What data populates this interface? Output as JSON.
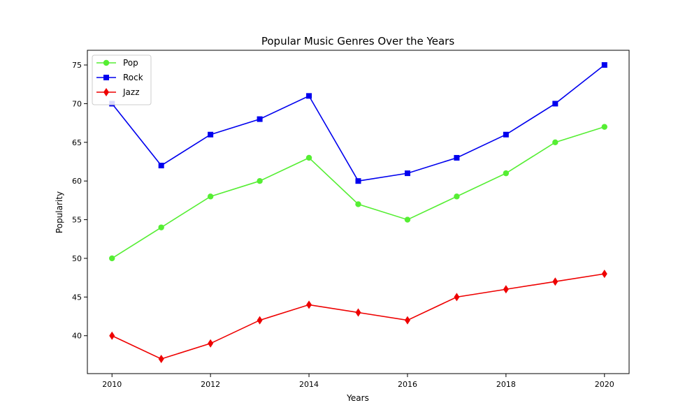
{
  "chart_data": {
    "type": "line",
    "title": "Popular Music Genres Over the Years",
    "xlabel": "Years",
    "ylabel": "Popularity",
    "x": [
      2010,
      2011,
      2012,
      2013,
      2014,
      2015,
      2016,
      2017,
      2018,
      2019,
      2020
    ],
    "xticks": [
      2010,
      2012,
      2014,
      2016,
      2018,
      2020
    ],
    "yticks": [
      40,
      45,
      50,
      55,
      60,
      65,
      70,
      75
    ],
    "xlim": [
      2009.5,
      2020.5
    ],
    "ylim": [
      35.1,
      76.9
    ],
    "grid": false,
    "legend_position": "upper-left",
    "series": [
      {
        "name": "Pop",
        "color": "#55ee33",
        "marker": "circle",
        "values": [
          50,
          54,
          58,
          60,
          63,
          57,
          55,
          58,
          61,
          65,
          67
        ]
      },
      {
        "name": "Rock",
        "color": "#0000ee",
        "marker": "square",
        "values": [
          70,
          62,
          66,
          68,
          71,
          60,
          61,
          63,
          66,
          70,
          75
        ]
      },
      {
        "name": "Jazz",
        "color": "#ee0000",
        "marker": "diamond",
        "values": [
          40,
          37,
          39,
          42,
          44,
          43,
          42,
          45,
          46,
          47,
          48
        ]
      }
    ]
  }
}
